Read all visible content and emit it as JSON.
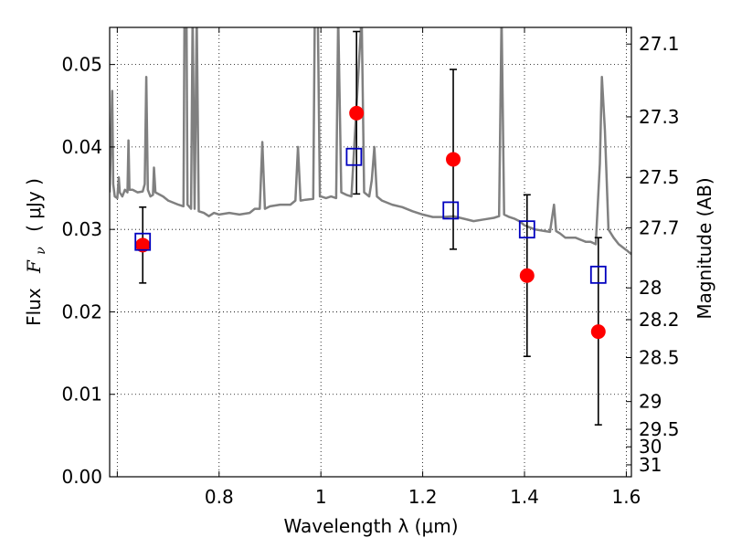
{
  "chart_data": {
    "type": "scatter",
    "xlabel": "Wavelength  λ (μm)",
    "ylabel": "Flux  F_ν  ( μJy )",
    "ylabel_parts": {
      "prefix": "Flux",
      "symbol": "F",
      "subscript": "ν",
      "unit": "( μJy )"
    },
    "y2label": "Magnitude (AB)",
    "xlim": [
      0.585,
      1.61
    ],
    "ylim": [
      0.0,
      0.0545
    ],
    "grid": true,
    "x_ticks": [
      0.6,
      0.8,
      1.0,
      1.2,
      1.4,
      1.6
    ],
    "x_tick_labels": [
      "",
      "0.8",
      "1",
      "1.2",
      "1.4",
      "1.6"
    ],
    "y_ticks": [
      0.0,
      0.01,
      0.02,
      0.03,
      0.04,
      0.05
    ],
    "y_tick_labels": [
      "0.00",
      "0.01",
      "0.02",
      "0.03",
      "0.04",
      "0.05"
    ],
    "y2_ticks": [
      27.1,
      27.3,
      27.5,
      27.7,
      28,
      28.2,
      28.5,
      29,
      29.5,
      30,
      31
    ],
    "y2_tick_labels": [
      "27.1",
      "27.3",
      "27.5",
      "27.7",
      "28",
      "28.2",
      "28.5",
      "29",
      "29.5",
      "30",
      "31"
    ],
    "series": [
      {
        "kind": "line",
        "color": "#808080",
        "points": [
          [
            0.585,
            0.0345
          ],
          [
            0.59,
            0.0468
          ],
          [
            0.592,
            0.0355
          ],
          [
            0.595,
            0.034
          ],
          [
            0.6,
            0.0338
          ],
          [
            0.603,
            0.0363
          ],
          [
            0.605,
            0.0345
          ],
          [
            0.61,
            0.034
          ],
          [
            0.615,
            0.0348
          ],
          [
            0.62,
            0.0345
          ],
          [
            0.622,
            0.0408
          ],
          [
            0.624,
            0.0348
          ],
          [
            0.63,
            0.0348
          ],
          [
            0.64,
            0.0345
          ],
          [
            0.65,
            0.0346
          ],
          [
            0.654,
            0.0355
          ],
          [
            0.657,
            0.0485
          ],
          [
            0.66,
            0.0348
          ],
          [
            0.665,
            0.034
          ],
          [
            0.67,
            0.0342
          ],
          [
            0.672,
            0.0375
          ],
          [
            0.675,
            0.0345
          ],
          [
            0.69,
            0.034
          ],
          [
            0.7,
            0.0335
          ],
          [
            0.72,
            0.033
          ],
          [
            0.73,
            0.0328
          ],
          [
            0.732,
            0.056
          ],
          [
            0.736,
            0.056
          ],
          [
            0.738,
            0.033
          ],
          [
            0.745,
            0.0325
          ],
          [
            0.748,
            0.056
          ],
          [
            0.752,
            0.0325
          ],
          [
            0.756,
            0.056
          ],
          [
            0.76,
            0.0322
          ],
          [
            0.77,
            0.032
          ],
          [
            0.78,
            0.0316
          ],
          [
            0.79,
            0.032
          ],
          [
            0.8,
            0.0318
          ],
          [
            0.82,
            0.032
          ],
          [
            0.84,
            0.0318
          ],
          [
            0.86,
            0.032
          ],
          [
            0.87,
            0.0325
          ],
          [
            0.88,
            0.0325
          ],
          [
            0.885,
            0.0406
          ],
          [
            0.89,
            0.0325
          ],
          [
            0.9,
            0.0328
          ],
          [
            0.92,
            0.033
          ],
          [
            0.94,
            0.033
          ],
          [
            0.95,
            0.0335
          ],
          [
            0.955,
            0.04
          ],
          [
            0.96,
            0.0335
          ],
          [
            0.97,
            0.0336
          ],
          [
            0.985,
            0.0337
          ],
          [
            0.988,
            0.056
          ],
          [
            0.994,
            0.056
          ],
          [
            0.998,
            0.034
          ],
          [
            1.0,
            0.034
          ],
          [
            1.01,
            0.0338
          ],
          [
            1.02,
            0.034
          ],
          [
            1.03,
            0.0338
          ],
          [
            1.034,
            0.056
          ],
          [
            1.04,
            0.0345
          ],
          [
            1.05,
            0.0342
          ],
          [
            1.06,
            0.034
          ],
          [
            1.08,
            0.056
          ],
          [
            1.085,
            0.0345
          ],
          [
            1.095,
            0.034
          ],
          [
            1.1,
            0.036
          ],
          [
            1.105,
            0.04
          ],
          [
            1.11,
            0.034
          ],
          [
            1.12,
            0.0335
          ],
          [
            1.14,
            0.033
          ],
          [
            1.16,
            0.0327
          ],
          [
            1.18,
            0.0322
          ],
          [
            1.2,
            0.0318
          ],
          [
            1.22,
            0.0315
          ],
          [
            1.24,
            0.0315
          ],
          [
            1.26,
            0.0316
          ],
          [
            1.28,
            0.0313
          ],
          [
            1.3,
            0.031
          ],
          [
            1.32,
            0.0312
          ],
          [
            1.34,
            0.0314
          ],
          [
            1.35,
            0.0316
          ],
          [
            1.355,
            0.056
          ],
          [
            1.36,
            0.0318
          ],
          [
            1.37,
            0.0315
          ],
          [
            1.38,
            0.0313
          ],
          [
            1.39,
            0.031
          ],
          [
            1.4,
            0.0305
          ],
          [
            1.42,
            0.03
          ],
          [
            1.44,
            0.0298
          ],
          [
            1.45,
            0.0297
          ],
          [
            1.458,
            0.033
          ],
          [
            1.462,
            0.0298
          ],
          [
            1.47,
            0.0295
          ],
          [
            1.48,
            0.029
          ],
          [
            1.5,
            0.029
          ],
          [
            1.52,
            0.0285
          ],
          [
            1.53,
            0.0285
          ],
          [
            1.54,
            0.0282
          ],
          [
            1.548,
            0.038
          ],
          [
            1.552,
            0.0485
          ],
          [
            1.558,
            0.042
          ],
          [
            1.565,
            0.03
          ],
          [
            1.575,
            0.029
          ],
          [
            1.585,
            0.0282
          ],
          [
            1.6,
            0.0275
          ],
          [
            1.61,
            0.027
          ]
        ]
      },
      {
        "kind": "errorbar",
        "color": "#ff0000",
        "marker": "circle",
        "points": [
          {
            "x": 0.65,
            "y": 0.0281,
            "yerr_low": 0.0046,
            "yerr_high": 0.0046
          },
          {
            "x": 1.07,
            "y": 0.0441,
            "yerr_low": 0.0098,
            "yerr_high": 0.0099
          },
          {
            "x": 1.26,
            "y": 0.0385,
            "yerr_low": 0.0109,
            "yerr_high": 0.0109
          },
          {
            "x": 1.405,
            "y": 0.0244,
            "yerr_low": 0.0098,
            "yerr_high": 0.0098
          },
          {
            "x": 1.545,
            "y": 0.0176,
            "yerr_low": 0.0113,
            "yerr_high": 0.0114
          }
        ]
      },
      {
        "kind": "scatter",
        "color": "#0000bf",
        "marker": "square-open",
        "points": [
          {
            "x": 0.65,
            "y": 0.0285
          },
          {
            "x": 1.065,
            "y": 0.0388
          },
          {
            "x": 1.255,
            "y": 0.0323
          },
          {
            "x": 1.405,
            "y": 0.03
          },
          {
            "x": 1.545,
            "y": 0.0245
          }
        ]
      }
    ]
  }
}
